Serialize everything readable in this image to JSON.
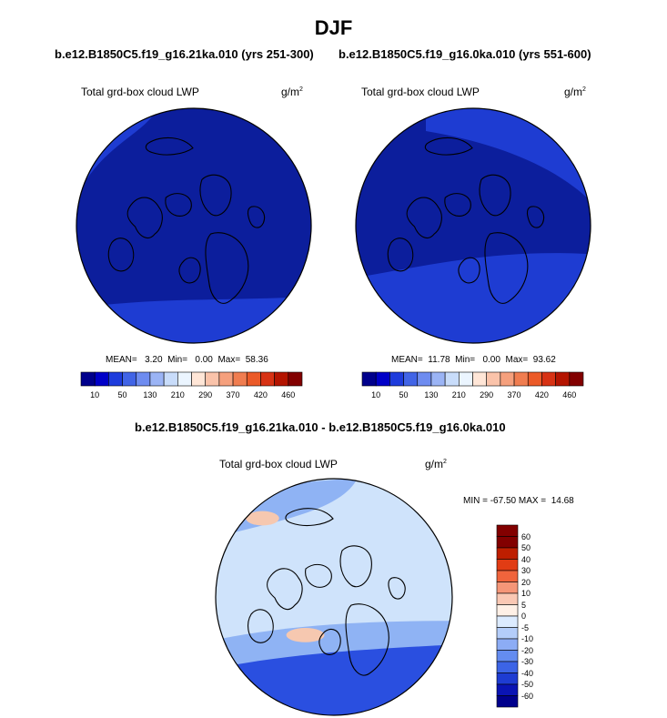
{
  "title": "DJF",
  "panel_left": {
    "subtitle": "b.e12.B1850C5.f19_g16.21ka.010 (yrs 251-300)",
    "variable": "Total grd-box cloud LWP",
    "units": "g/m",
    "units_sup": "2",
    "mean_label": "MEAN=",
    "mean": "3.20",
    "min_label": "Min=",
    "min": "0.00",
    "max_label": "Max=",
    "max": "58.36"
  },
  "panel_right": {
    "subtitle": "b.e12.B1850C5.f19_g16.0ka.010 (yrs 551-600)",
    "variable": "Total grd-box cloud LWP",
    "units": "g/m",
    "units_sup": "2",
    "mean_label": "MEAN=",
    "mean": "11.78",
    "min_label": "Min=",
    "min": "0.00",
    "max_label": "Max=",
    "max": "93.62"
  },
  "diff_title": "b.e12.B1850C5.f19_g16.21ka.010 - b.e12.B1850C5.f19_g16.0ka.010",
  "panel_diff": {
    "variable": "Total grd-box cloud LWP",
    "units": "g/m",
    "units_sup": "2",
    "minmax": "MIN = -67.50 MAX =  14.68"
  },
  "abs_colorbar": {
    "colors": [
      "#00008c",
      "#0000c8",
      "#1e3cdc",
      "#4164e6",
      "#6e8cf0",
      "#9bb4f5",
      "#c8dcfa",
      "#ebf5ff",
      "#ffe6d7",
      "#fac3aa",
      "#f5a07d",
      "#f07d50",
      "#eb5a28",
      "#d73214",
      "#b41400",
      "#820000"
    ],
    "tick_labels": [
      "10",
      "50",
      "130",
      "210",
      "290",
      "370",
      "420",
      "460"
    ]
  },
  "diff_colorbar": {
    "colors": [
      "#820000",
      "#be1e00",
      "#e13c14",
      "#f0643c",
      "#f59678",
      "#fac8b4",
      "#fff0e6",
      "#dcebff",
      "#b4cdfa",
      "#8cacf5",
      "#648cf0",
      "#3c64e6",
      "#1e3cd2",
      "#0a14b4",
      "#00008c"
    ],
    "tick_labels": [
      "60",
      "50",
      "40",
      "30",
      "20",
      "10",
      "5",
      "0",
      "-5",
      "-10",
      "-20",
      "-30",
      "-40",
      "-50",
      "-60"
    ]
  },
  "map_colors": {
    "left_bg": "#0c1e9c",
    "left_edge": "#1e3cd2",
    "right_bg": "#0c1e9c",
    "right_edge": "#1e3cd2",
    "diff_bg": "#cfe3fb",
    "diff_mid": "#8fb3f4",
    "diff_deep": "#2a4fe0",
    "diff_warm": "#f6c8b0"
  }
}
